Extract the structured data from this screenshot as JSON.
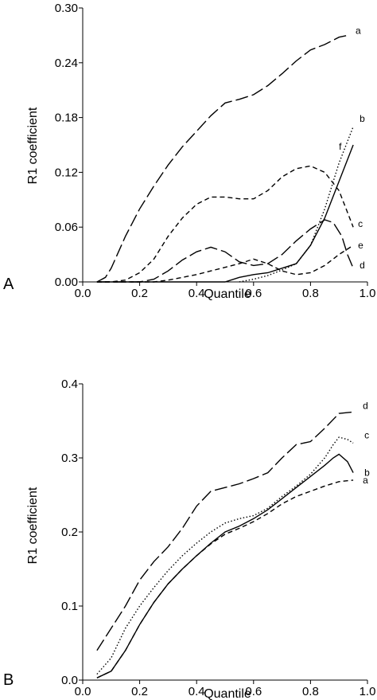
{
  "chart_data": [
    {
      "panel_label": "A",
      "type": "line",
      "xlabel": "Quantile",
      "ylabel": "R1 coefficient",
      "xlim": [
        0.0,
        1.0
      ],
      "ylim": [
        0.0,
        0.3
      ],
      "xticks": [
        "0.0",
        "0.2",
        "0.4",
        "0.6",
        "0.8",
        "1.0"
      ],
      "yticks": [
        "0.00",
        "0.06",
        "0.12",
        "0.18",
        "0.24",
        "0.30"
      ],
      "series": [
        {
          "name": "a",
          "style": "long-dash",
          "x": [
            0.05,
            0.08,
            0.1,
            0.15,
            0.2,
            0.25,
            0.3,
            0.35,
            0.4,
            0.45,
            0.5,
            0.55,
            0.6,
            0.65,
            0.7,
            0.75,
            0.8,
            0.85,
            0.9,
            0.93
          ],
          "y": [
            0.0,
            0.005,
            0.015,
            0.05,
            0.08,
            0.105,
            0.128,
            0.148,
            0.165,
            0.182,
            0.196,
            0.2,
            0.205,
            0.215,
            0.228,
            0.242,
            0.254,
            0.26,
            0.268,
            0.27
          ]
        },
        {
          "name": "b",
          "style": "dotted",
          "x": [
            0.55,
            0.6,
            0.65,
            0.7,
            0.75,
            0.8,
            0.85,
            0.9,
            0.95
          ],
          "y": [
            0.0,
            0.003,
            0.007,
            0.013,
            0.02,
            0.04,
            0.08,
            0.13,
            0.17
          ]
        },
        {
          "name": "c",
          "style": "short-dash",
          "x": [
            0.05,
            0.1,
            0.15,
            0.2,
            0.25,
            0.3,
            0.35,
            0.4,
            0.45,
            0.5,
            0.55,
            0.6,
            0.65,
            0.7,
            0.75,
            0.8,
            0.85,
            0.9,
            0.95
          ],
          "y": [
            0.0,
            0.0,
            0.002,
            0.01,
            0.025,
            0.05,
            0.07,
            0.085,
            0.093,
            0.093,
            0.091,
            0.091,
            0.1,
            0.115,
            0.124,
            0.127,
            0.12,
            0.1,
            0.06
          ]
        },
        {
          "name": "d",
          "style": "long-dash",
          "x": [
            0.05,
            0.2,
            0.25,
            0.3,
            0.35,
            0.4,
            0.45,
            0.5,
            0.55,
            0.6,
            0.65,
            0.7,
            0.75,
            0.8,
            0.85,
            0.88,
            0.91,
            0.93,
            0.95
          ],
          "y": [
            0.0,
            0.0,
            0.003,
            0.012,
            0.024,
            0.033,
            0.038,
            0.033,
            0.022,
            0.018,
            0.02,
            0.03,
            0.045,
            0.058,
            0.068,
            0.065,
            0.05,
            0.03,
            0.015
          ]
        },
        {
          "name": "e",
          "style": "short-dash",
          "x": [
            0.05,
            0.25,
            0.3,
            0.35,
            0.4,
            0.45,
            0.5,
            0.55,
            0.6,
            0.65,
            0.7,
            0.75,
            0.8,
            0.85,
            0.9,
            0.95
          ],
          "y": [
            0.0,
            0.0,
            0.002,
            0.005,
            0.008,
            0.012,
            0.016,
            0.02,
            0.025,
            0.02,
            0.012,
            0.008,
            0.01,
            0.018,
            0.03,
            0.04
          ]
        },
        {
          "name": "f",
          "style": "solid",
          "x": [
            0.05,
            0.5,
            0.55,
            0.6,
            0.65,
            0.7,
            0.75,
            0.8,
            0.85,
            0.9,
            0.95
          ],
          "y": [
            0.0,
            0.0,
            0.005,
            0.008,
            0.01,
            0.015,
            0.02,
            0.04,
            0.07,
            0.11,
            0.15
          ]
        }
      ]
    },
    {
      "panel_label": "B",
      "type": "line",
      "xlabel": "Quantile",
      "ylabel": "R1 coefficient",
      "xlim": [
        0.0,
        1.0
      ],
      "ylim": [
        0.0,
        0.4
      ],
      "xticks": [
        "0.0",
        "0.2",
        "0.4",
        "0.6",
        "0.8",
        "1.0"
      ],
      "yticks": [
        "0.0",
        "0.1",
        "0.2",
        "0.3",
        "0.4"
      ],
      "series": [
        {
          "name": "a",
          "style": "short-dash",
          "x": [
            0.05,
            0.1,
            0.15,
            0.2,
            0.25,
            0.3,
            0.35,
            0.4,
            0.45,
            0.5,
            0.55,
            0.6,
            0.65,
            0.7,
            0.75,
            0.8,
            0.85,
            0.9,
            0.95
          ],
          "y": [
            0.003,
            0.012,
            0.04,
            0.075,
            0.105,
            0.13,
            0.15,
            0.168,
            0.184,
            0.197,
            0.205,
            0.214,
            0.225,
            0.238,
            0.248,
            0.255,
            0.262,
            0.268,
            0.27
          ]
        },
        {
          "name": "b",
          "style": "solid",
          "x": [
            0.05,
            0.1,
            0.15,
            0.2,
            0.25,
            0.3,
            0.35,
            0.4,
            0.45,
            0.5,
            0.55,
            0.6,
            0.65,
            0.7,
            0.75,
            0.8,
            0.85,
            0.88,
            0.9,
            0.93,
            0.95
          ],
          "y": [
            0.003,
            0.012,
            0.04,
            0.075,
            0.105,
            0.13,
            0.15,
            0.168,
            0.185,
            0.2,
            0.208,
            0.218,
            0.23,
            0.245,
            0.26,
            0.275,
            0.29,
            0.3,
            0.305,
            0.295,
            0.28
          ]
        },
        {
          "name": "c",
          "style": "dotted",
          "x": [
            0.05,
            0.1,
            0.15,
            0.2,
            0.25,
            0.3,
            0.35,
            0.4,
            0.45,
            0.5,
            0.55,
            0.6,
            0.65,
            0.7,
            0.75,
            0.8,
            0.85,
            0.88,
            0.9,
            0.93,
            0.95
          ],
          "y": [
            0.008,
            0.03,
            0.07,
            0.1,
            0.125,
            0.148,
            0.168,
            0.185,
            0.2,
            0.212,
            0.218,
            0.222,
            0.232,
            0.248,
            0.262,
            0.278,
            0.3,
            0.318,
            0.328,
            0.325,
            0.32
          ]
        },
        {
          "name": "d",
          "style": "long-dash",
          "x": [
            0.05,
            0.1,
            0.15,
            0.2,
            0.25,
            0.3,
            0.35,
            0.4,
            0.45,
            0.5,
            0.55,
            0.6,
            0.65,
            0.7,
            0.75,
            0.8,
            0.85,
            0.9,
            0.95
          ],
          "y": [
            0.04,
            0.07,
            0.1,
            0.135,
            0.16,
            0.18,
            0.205,
            0.235,
            0.255,
            0.26,
            0.265,
            0.272,
            0.28,
            0.3,
            0.318,
            0.322,
            0.34,
            0.36,
            0.362
          ]
        }
      ]
    }
  ]
}
